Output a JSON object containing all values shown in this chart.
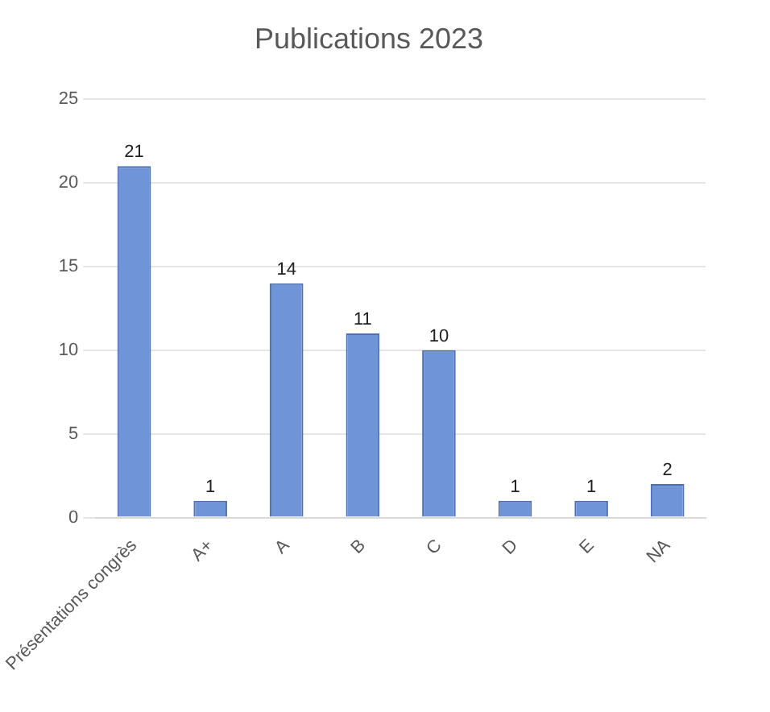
{
  "chart_data": {
    "type": "bar",
    "title": "Publications 2023",
    "categories": [
      "Présentations congrès",
      "A+",
      "A",
      "B",
      "C",
      "D",
      "E",
      "NA"
    ],
    "values": [
      21,
      1,
      14,
      11,
      10,
      1,
      1,
      2
    ],
    "color": "#7094d8",
    "ylim": [
      0,
      25
    ],
    "yticks": [
      0,
      5,
      10,
      15,
      20,
      25
    ],
    "grid": "y",
    "data_labels": true
  }
}
